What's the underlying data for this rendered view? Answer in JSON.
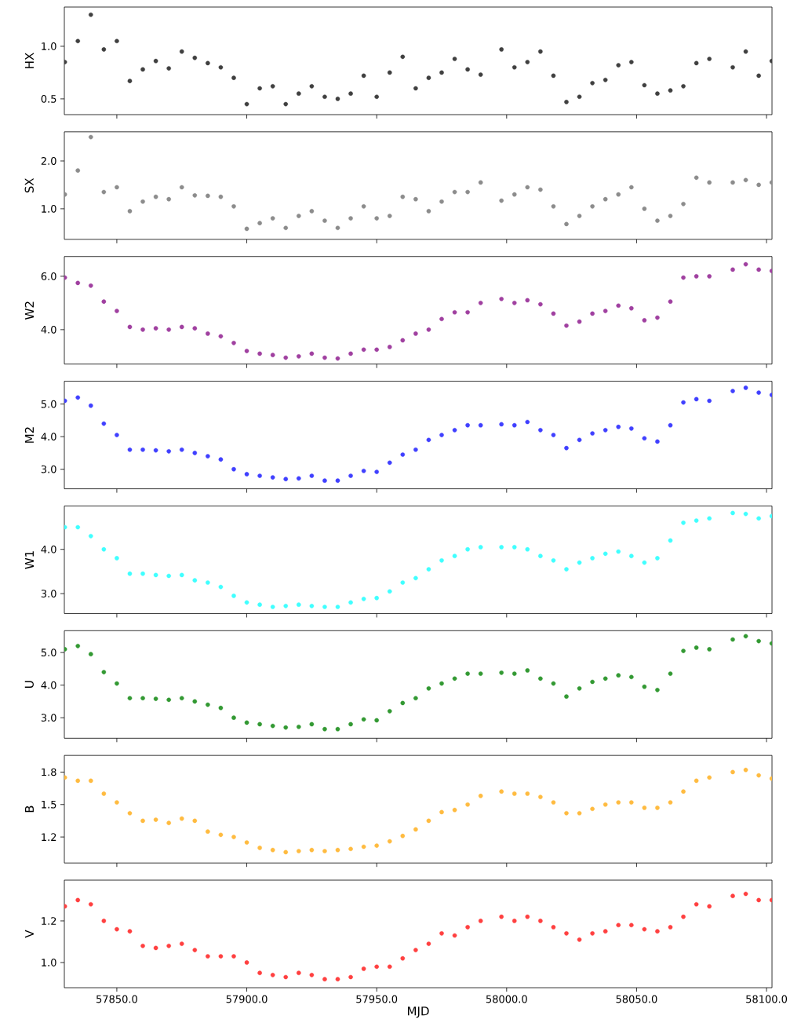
{
  "chart_data": [
    {
      "type": "scatter",
      "ylabel": "HX",
      "color": "#404040",
      "marker": "circle",
      "tick_labels": "y",
      "x": [
        57830,
        57835,
        57840,
        57845,
        57850,
        57855,
        57860,
        57865,
        57870,
        57875,
        57880,
        57885,
        57890,
        57895,
        57900,
        57905,
        57910,
        57915,
        57920,
        57925,
        57930,
        57935,
        57940,
        57945,
        57950,
        57955,
        57960,
        57965,
        57970,
        57975,
        57980,
        57985,
        57990,
        57998,
        58003,
        58008,
        58013,
        58018,
        58023,
        58028,
        58033,
        58038,
        58043,
        58048,
        58053,
        58058,
        58063,
        58068,
        58073,
        58078,
        58087,
        58092,
        58097,
        58102
      ],
      "values": [
        0.85,
        1.05,
        1.3,
        0.97,
        1.05,
        0.67,
        0.78,
        0.86,
        0.79,
        0.95,
        0.89,
        0.84,
        0.8,
        0.7,
        0.45,
        0.6,
        0.62,
        0.45,
        0.55,
        0.62,
        0.52,
        0.5,
        0.55,
        0.72,
        0.52,
        0.75,
        0.9,
        0.6,
        0.7,
        0.75,
        0.88,
        0.78,
        0.73,
        0.97,
        0.8,
        0.85,
        0.95,
        0.72,
        0.47,
        0.52,
        0.65,
        0.68,
        0.82,
        0.85,
        0.63,
        0.55,
        0.58,
        0.62,
        0.84,
        0.88,
        0.8,
        0.95,
        0.72,
        0.86
      ],
      "xlim": [
        57829.8,
        58102.1
      ],
      "ylim": [
        0.35,
        1.373
      ],
      "xticks": [
        {
          "value": 57850,
          "label": null
        },
        {
          "value": 57900,
          "label": null
        },
        {
          "value": 57950,
          "label": null
        },
        {
          "value": 58000,
          "label": null
        },
        {
          "value": 58050,
          "label": null
        },
        {
          "value": 58100,
          "label": null
        }
      ],
      "yticks": [
        {
          "value": 0.5,
          "label": "0.5"
        },
        {
          "value": 1.0,
          "label": "1.0"
        }
      ]
    },
    {
      "type": "scatter",
      "ylabel": "SX",
      "color": "#8c8c8c",
      "marker": "circle",
      "tick_labels": "y",
      "x": [
        57830,
        57835,
        57840,
        57845,
        57850,
        57855,
        57860,
        57865,
        57870,
        57875,
        57880,
        57885,
        57890,
        57895,
        57900,
        57905,
        57910,
        57915,
        57920,
        57925,
        57930,
        57935,
        57940,
        57945,
        57950,
        57955,
        57960,
        57965,
        57970,
        57975,
        57980,
        57985,
        57990,
        57998,
        58003,
        58008,
        58013,
        58018,
        58023,
        58028,
        58033,
        58038,
        58043,
        58048,
        58053,
        58058,
        58063,
        58068,
        58073,
        58078,
        58087,
        58092,
        58097,
        58102
      ],
      "values": [
        1.3,
        1.8,
        2.5,
        1.35,
        1.45,
        0.95,
        1.15,
        1.25,
        1.2,
        1.45,
        1.28,
        1.27,
        1.25,
        1.05,
        0.58,
        0.7,
        0.8,
        0.6,
        0.85,
        0.95,
        0.75,
        0.6,
        0.8,
        1.05,
        0.8,
        0.85,
        1.25,
        1.2,
        0.95,
        1.15,
        1.35,
        1.35,
        1.55,
        1.17,
        1.3,
        1.45,
        1.4,
        1.05,
        0.68,
        0.85,
        1.05,
        1.2,
        1.3,
        1.45,
        1.0,
        0.75,
        0.85,
        1.1,
        1.65,
        1.55,
        1.55,
        1.6,
        1.5,
        1.55
      ],
      "xlim": [
        57829.8,
        58102.1
      ],
      "ylim": [
        0.36,
        2.61
      ],
      "xticks": [
        {
          "value": 57850,
          "label": null
        },
        {
          "value": 57900,
          "label": null
        },
        {
          "value": 57950,
          "label": null
        },
        {
          "value": 58000,
          "label": null
        },
        {
          "value": 58050,
          "label": null
        },
        {
          "value": 58100,
          "label": null
        }
      ],
      "yticks": [
        {
          "value": 1.0,
          "label": "1.0"
        },
        {
          "value": 2.0,
          "label": "2.0"
        }
      ]
    },
    {
      "type": "scatter",
      "ylabel": "W2",
      "color": "#a040a0",
      "marker": "circle",
      "tick_labels": "y",
      "x": [
        57830,
        57835,
        57840,
        57845,
        57850,
        57855,
        57860,
        57865,
        57870,
        57875,
        57880,
        57885,
        57890,
        57895,
        57900,
        57905,
        57910,
        57915,
        57920,
        57925,
        57930,
        57935,
        57940,
        57945,
        57950,
        57955,
        57960,
        57965,
        57970,
        57975,
        57980,
        57985,
        57990,
        57998,
        58003,
        58008,
        58013,
        58018,
        58023,
        58028,
        58033,
        58038,
        58043,
        58048,
        58053,
        58058,
        58063,
        58068,
        58073,
        58078,
        58087,
        58092,
        58097,
        58102
      ],
      "values": [
        5.95,
        5.75,
        5.65,
        5.05,
        4.7,
        4.1,
        4.0,
        4.05,
        4.0,
        4.1,
        4.05,
        3.85,
        3.75,
        3.5,
        3.2,
        3.1,
        3.05,
        2.95,
        3.0,
        3.1,
        2.95,
        2.92,
        3.1,
        3.25,
        3.25,
        3.35,
        3.6,
        3.85,
        4.0,
        4.4,
        4.65,
        4.65,
        5.0,
        5.15,
        5.0,
        5.1,
        4.95,
        4.6,
        4.15,
        4.3,
        4.6,
        4.7,
        4.9,
        4.8,
        4.35,
        4.45,
        5.05,
        5.95,
        6.0,
        6.0,
        6.25,
        6.45,
        6.25,
        6.2
      ],
      "xlim": [
        57829.8,
        58102.1
      ],
      "ylim": [
        2.71,
        6.74
      ],
      "xticks": [
        {
          "value": 57850,
          "label": null
        },
        {
          "value": 57900,
          "label": null
        },
        {
          "value": 57950,
          "label": null
        },
        {
          "value": 58000,
          "label": null
        },
        {
          "value": 58050,
          "label": null
        },
        {
          "value": 58100,
          "label": null
        }
      ],
      "yticks": [
        {
          "value": 4.0,
          "label": "4.0"
        },
        {
          "value": 6.0,
          "label": "6.0"
        }
      ]
    },
    {
      "type": "scatter",
      "ylabel": "M2",
      "color": "#4040ff",
      "marker": "circle",
      "tick_labels": "y",
      "x": [
        57830,
        57835,
        57840,
        57845,
        57850,
        57855,
        57860,
        57865,
        57870,
        57875,
        57880,
        57885,
        57890,
        57895,
        57900,
        57905,
        57910,
        57915,
        57920,
        57925,
        57930,
        57935,
        57940,
        57945,
        57950,
        57955,
        57960,
        57965,
        57970,
        57975,
        57980,
        57985,
        57990,
        57998,
        58003,
        58008,
        58013,
        58018,
        58023,
        58028,
        58033,
        58038,
        58043,
        58048,
        58053,
        58058,
        58063,
        58068,
        58073,
        58078,
        58087,
        58092,
        58097,
        58102
      ],
      "values": [
        5.1,
        5.2,
        4.95,
        4.4,
        4.05,
        3.6,
        3.6,
        3.58,
        3.55,
        3.6,
        3.5,
        3.4,
        3.3,
        3.0,
        2.85,
        2.8,
        2.75,
        2.7,
        2.72,
        2.8,
        2.65,
        2.65,
        2.8,
        2.95,
        2.92,
        3.2,
        3.45,
        3.6,
        3.9,
        4.05,
        4.2,
        4.35,
        4.35,
        4.38,
        4.35,
        4.45,
        4.2,
        4.05,
        3.65,
        3.9,
        4.1,
        4.2,
        4.3,
        4.25,
        3.95,
        3.85,
        4.35,
        5.05,
        5.15,
        5.1,
        5.4,
        5.5,
        5.35,
        5.28
      ],
      "xlim": [
        57829.8,
        58102.1
      ],
      "ylim": [
        2.4,
        5.7
      ],
      "xticks": [
        {
          "value": 57850,
          "label": null
        },
        {
          "value": 57900,
          "label": null
        },
        {
          "value": 57950,
          "label": null
        },
        {
          "value": 58000,
          "label": null
        },
        {
          "value": 58050,
          "label": null
        },
        {
          "value": 58100,
          "label": null
        }
      ],
      "yticks": [
        {
          "value": 3.0,
          "label": "3.0"
        },
        {
          "value": 4.0,
          "label": "4.0"
        },
        {
          "value": 5.0,
          "label": "5.0"
        }
      ]
    },
    {
      "type": "scatter",
      "ylabel": "W1",
      "color": "#40ffff",
      "marker": "circle",
      "tick_labels": "y",
      "x": [
        57830,
        57835,
        57840,
        57845,
        57850,
        57855,
        57860,
        57865,
        57870,
        57875,
        57880,
        57885,
        57890,
        57895,
        57900,
        57905,
        57910,
        57915,
        57920,
        57925,
        57930,
        57935,
        57940,
        57945,
        57950,
        57955,
        57960,
        57965,
        57970,
        57975,
        57980,
        57985,
        57990,
        57998,
        58003,
        58008,
        58013,
        58018,
        58023,
        58028,
        58033,
        58038,
        58043,
        58048,
        58053,
        58058,
        58063,
        58068,
        58073,
        58078,
        58087,
        58092,
        58097,
        58102
      ],
      "values": [
        4.5,
        4.5,
        4.3,
        4.0,
        3.8,
        3.45,
        3.45,
        3.42,
        3.4,
        3.42,
        3.3,
        3.25,
        3.15,
        2.95,
        2.8,
        2.75,
        2.7,
        2.72,
        2.75,
        2.72,
        2.7,
        2.7,
        2.8,
        2.88,
        2.9,
        3.05,
        3.25,
        3.35,
        3.55,
        3.75,
        3.85,
        4.0,
        4.05,
        4.05,
        4.05,
        4.0,
        3.85,
        3.75,
        3.55,
        3.7,
        3.8,
        3.9,
        3.95,
        3.85,
        3.7,
        3.8,
        4.2,
        4.6,
        4.65,
        4.7,
        4.82,
        4.8,
        4.7,
        4.75
      ],
      "xlim": [
        57829.8,
        58102.1
      ],
      "ylim": [
        2.55,
        4.98
      ],
      "xticks": [
        {
          "value": 57850,
          "label": null
        },
        {
          "value": 57900,
          "label": null
        },
        {
          "value": 57950,
          "label": null
        },
        {
          "value": 58000,
          "label": null
        },
        {
          "value": 58050,
          "label": null
        },
        {
          "value": 58100,
          "label": null
        }
      ],
      "yticks": [
        {
          "value": 3.0,
          "label": "3.0"
        },
        {
          "value": 4.0,
          "label": "4.0"
        }
      ]
    },
    {
      "type": "scatter",
      "ylabel": "U",
      "color": "#339933",
      "marker": "circle",
      "tick_labels": "y",
      "x": [
        57830,
        57835,
        57840,
        57845,
        57850,
        57855,
        57860,
        57865,
        57870,
        57875,
        57880,
        57885,
        57890,
        57895,
        57900,
        57905,
        57910,
        57915,
        57920,
        57925,
        57930,
        57935,
        57940,
        57945,
        57950,
        57955,
        57960,
        57965,
        57970,
        57975,
        57980,
        57985,
        57990,
        57998,
        58003,
        58008,
        58013,
        58018,
        58023,
        58028,
        58033,
        58038,
        58043,
        58048,
        58053,
        58058,
        58063,
        58068,
        58073,
        58078,
        58087,
        58092,
        58097,
        58102
      ],
      "values": [
        5.1,
        5.2,
        4.95,
        4.4,
        4.05,
        3.6,
        3.6,
        3.58,
        3.55,
        3.6,
        3.5,
        3.4,
        3.3,
        3.0,
        2.85,
        2.8,
        2.75,
        2.7,
        2.72,
        2.8,
        2.65,
        2.65,
        2.8,
        2.95,
        2.92,
        3.2,
        3.45,
        3.6,
        3.9,
        4.05,
        4.2,
        4.35,
        4.35,
        4.38,
        4.35,
        4.45,
        4.2,
        4.05,
        3.65,
        3.9,
        4.1,
        4.2,
        4.3,
        4.25,
        3.95,
        3.85,
        4.35,
        5.05,
        5.15,
        5.1,
        5.4,
        5.5,
        5.35,
        5.28
      ],
      "xlim": [
        57829.8,
        58102.1
      ],
      "ylim": [
        2.37,
        5.67
      ],
      "xticks": [
        {
          "value": 57850,
          "label": null
        },
        {
          "value": 57900,
          "label": null
        },
        {
          "value": 57950,
          "label": null
        },
        {
          "value": 58000,
          "label": null
        },
        {
          "value": 58050,
          "label": null
        },
        {
          "value": 58100,
          "label": null
        }
      ],
      "yticks": [
        {
          "value": 3.0,
          "label": "3.0"
        },
        {
          "value": 4.0,
          "label": "4.0"
        },
        {
          "value": 5.0,
          "label": "5.0"
        }
      ]
    },
    {
      "type": "scatter",
      "ylabel": "B",
      "color": "#ffbb40",
      "marker": "circle",
      "tick_labels": "y",
      "x": [
        57830,
        57835,
        57840,
        57845,
        57850,
        57855,
        57860,
        57865,
        57870,
        57875,
        57880,
        57885,
        57890,
        57895,
        57900,
        57905,
        57910,
        57915,
        57920,
        57925,
        57930,
        57935,
        57940,
        57945,
        57950,
        57955,
        57960,
        57965,
        57970,
        57975,
        57980,
        57985,
        57990,
        57998,
        58003,
        58008,
        58013,
        58018,
        58023,
        58028,
        58033,
        58038,
        58043,
        58048,
        58053,
        58058,
        58063,
        58068,
        58073,
        58078,
        58087,
        58092,
        58097,
        58102
      ],
      "values": [
        1.75,
        1.72,
        1.72,
        1.6,
        1.52,
        1.42,
        1.35,
        1.36,
        1.33,
        1.37,
        1.35,
        1.25,
        1.22,
        1.2,
        1.15,
        1.1,
        1.08,
        1.06,
        1.07,
        1.08,
        1.07,
        1.08,
        1.09,
        1.11,
        1.12,
        1.16,
        1.21,
        1.27,
        1.35,
        1.43,
        1.45,
        1.5,
        1.58,
        1.62,
        1.6,
        1.6,
        1.57,
        1.52,
        1.42,
        1.42,
        1.46,
        1.5,
        1.52,
        1.52,
        1.47,
        1.47,
        1.52,
        1.62,
        1.72,
        1.75,
        1.8,
        1.82,
        1.77,
        1.74
      ],
      "xlim": [
        57829.8,
        58102.1
      ],
      "ylim": [
        0.96,
        1.954
      ],
      "xticks": [
        {
          "value": 57850,
          "label": null
        },
        {
          "value": 57900,
          "label": null
        },
        {
          "value": 57950,
          "label": null
        },
        {
          "value": 58000,
          "label": null
        },
        {
          "value": 58050,
          "label": null
        },
        {
          "value": 58100,
          "label": null
        }
      ],
      "yticks": [
        {
          "value": 1.2,
          "label": "1.2"
        },
        {
          "value": 1.5,
          "label": "1.5"
        },
        {
          "value": 1.8,
          "label": "1.8"
        }
      ]
    },
    {
      "type": "scatter",
      "ylabel": "V",
      "xlabel": "MJD",
      "color": "#ff4040",
      "marker": "circle",
      "x": [
        57830,
        57835,
        57840,
        57845,
        57850,
        57855,
        57860,
        57865,
        57870,
        57875,
        57880,
        57885,
        57890,
        57895,
        57900,
        57905,
        57910,
        57915,
        57920,
        57925,
        57930,
        57935,
        57940,
        57945,
        57950,
        57955,
        57960,
        57965,
        57970,
        57975,
        57980,
        57985,
        57990,
        57998,
        58003,
        58008,
        58013,
        58018,
        58023,
        58028,
        58033,
        58038,
        58043,
        58048,
        58053,
        58058,
        58063,
        58068,
        58073,
        58078,
        58087,
        58092,
        58097,
        58102
      ],
      "values": [
        1.27,
        1.3,
        1.28,
        1.2,
        1.16,
        1.15,
        1.08,
        1.07,
        1.08,
        1.09,
        1.06,
        1.03,
        1.03,
        1.03,
        1.0,
        0.95,
        0.94,
        0.93,
        0.95,
        0.94,
        0.92,
        0.92,
        0.93,
        0.97,
        0.98,
        0.98,
        1.02,
        1.06,
        1.09,
        1.14,
        1.13,
        1.17,
        1.2,
        1.22,
        1.2,
        1.22,
        1.2,
        1.17,
        1.14,
        1.11,
        1.14,
        1.15,
        1.18,
        1.18,
        1.16,
        1.15,
        1.17,
        1.22,
        1.28,
        1.27,
        1.32,
        1.33,
        1.3,
        1.3
      ],
      "xlim": [
        57829.8,
        58102.1
      ],
      "ylim": [
        0.879,
        1.396
      ],
      "xticks": [
        {
          "value": 57850,
          "label": "57850.0"
        },
        {
          "value": 57900,
          "label": "57900.0"
        },
        {
          "value": 57950,
          "label": "57950.0"
        },
        {
          "value": 58000,
          "label": "58000.0"
        },
        {
          "value": 58050,
          "label": "58050.0"
        },
        {
          "value": 58100,
          "label": "58100.0"
        }
      ],
      "yticks": [
        {
          "value": 1.0,
          "label": "1.0"
        },
        {
          "value": 1.2,
          "label": "1.2"
        }
      ]
    }
  ]
}
